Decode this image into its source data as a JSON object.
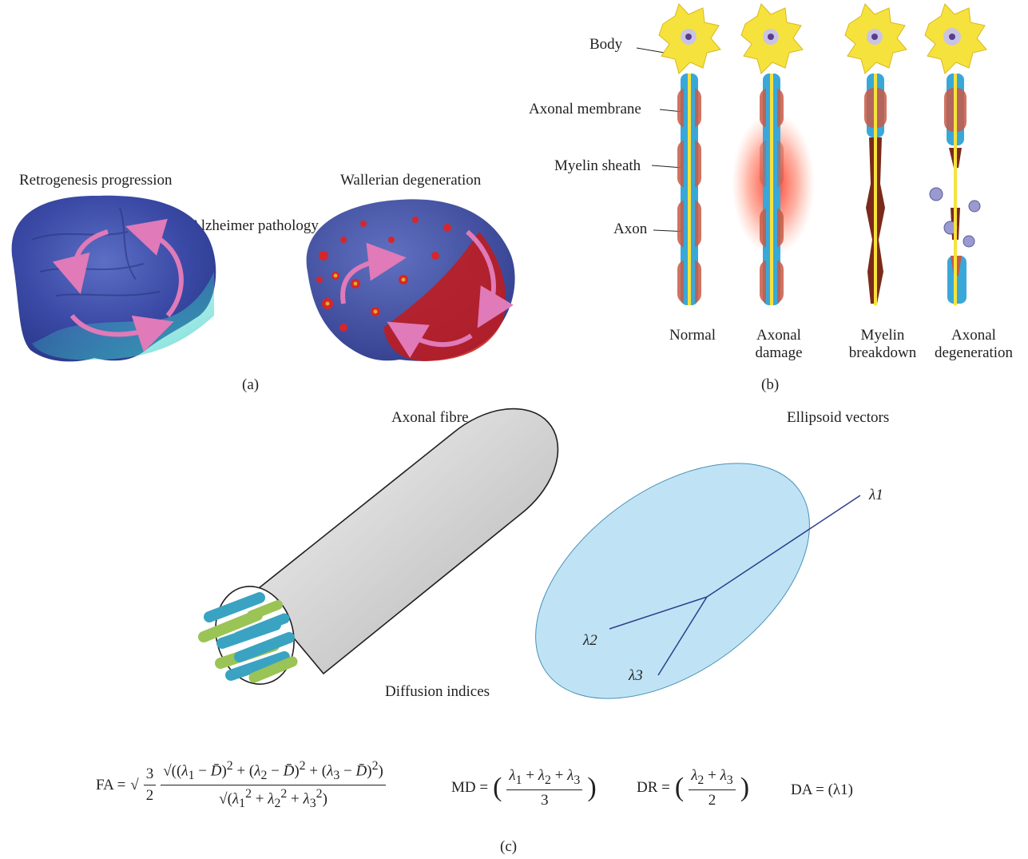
{
  "panel_a": {
    "title_left": "Retrogenesis progression",
    "title_right": "Wallerian degeneration",
    "center_label": "Alzheimer pathology",
    "caption": "(a)"
  },
  "panel_b": {
    "labels": {
      "body": "Body",
      "axonal_membrane": "Axonal membrane",
      "myelin_sheath": "Myelin sheath",
      "axon": "Axon"
    },
    "stages": [
      "Normal",
      "Axonal damage",
      "Myelin breakdown",
      "Axonal degeneration"
    ],
    "caption": "(b)"
  },
  "panel_c": {
    "fibre_title": "Axonal fibre",
    "ellipsoid_title": "Ellipsoid vectors",
    "diffusion_label": "Diffusion indices",
    "lambda_1": "λ1",
    "lambda_2": "λ2",
    "lambda_3": "λ3",
    "caption": "(c)",
    "formulas": {
      "fa_lhs": "FA =",
      "md_lhs": "MD =",
      "dr_lhs": "DR =",
      "da": "DA = (λ1)"
    }
  },
  "colors": {
    "brain_blue": "#3f4aa8",
    "ellipsoid_fill": "#bfe3f5",
    "neuron_yellow": "#f6e23c",
    "myelin_blue": "#3aa7d9",
    "myelin_red": "#b8433a",
    "fibre_green": "#9ac455",
    "fibre_teal": "#3aa3c2"
  }
}
